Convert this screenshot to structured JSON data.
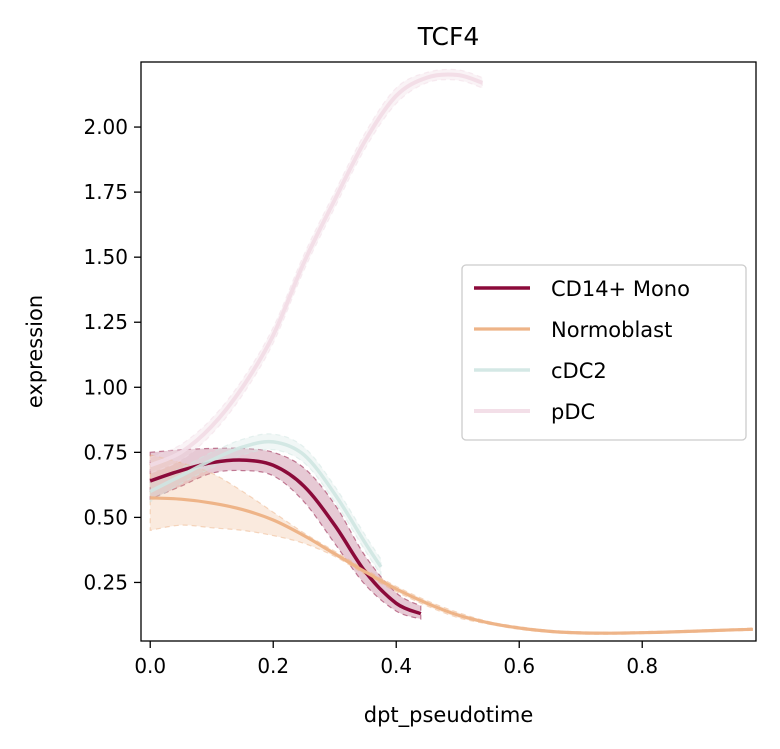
{
  "chart_data": {
    "type": "line",
    "title": "TCF4",
    "xlabel": "dpt_pseudotime",
    "ylabel": "expression",
    "xlim": [
      -0.015,
      0.985
    ],
    "ylim": [
      0.025,
      2.25
    ],
    "xticks": [
      0.0,
      0.2,
      0.4,
      0.6,
      0.8
    ],
    "xtick_labels": [
      "0.0",
      "0.2",
      "0.4",
      "0.6",
      "0.8"
    ],
    "yticks": [
      0.25,
      0.5,
      0.75,
      1.0,
      1.25,
      1.5,
      1.75,
      2.0
    ],
    "ytick_labels": [
      "0.25",
      "0.50",
      "0.75",
      "1.00",
      "1.25",
      "1.50",
      "1.75",
      "2.00"
    ],
    "grid": false,
    "legend_position": "center-right",
    "series": [
      {
        "name": "CD14+ Mono",
        "color": "#8b0a3a",
        "line_width": 3.5,
        "opacity": 1.0,
        "x": [
          0.0,
          0.05,
          0.1,
          0.15,
          0.2,
          0.25,
          0.3,
          0.35,
          0.4,
          0.44
        ],
        "y": [
          0.64,
          0.68,
          0.71,
          0.72,
          0.7,
          0.62,
          0.47,
          0.29,
          0.17,
          0.13
        ],
        "band_upper": [
          0.75,
          0.76,
          0.765,
          0.765,
          0.75,
          0.69,
          0.55,
          0.35,
          0.21,
          0.16
        ],
        "band_lower": [
          0.57,
          0.62,
          0.67,
          0.68,
          0.66,
          0.56,
          0.4,
          0.24,
          0.14,
          0.11
        ],
        "band_opacity": 0.22
      },
      {
        "name": "Normoblast",
        "color": "#eeb488",
        "line_width": 3.2,
        "opacity": 1.0,
        "x": [
          0.0,
          0.05,
          0.1,
          0.15,
          0.2,
          0.25,
          0.3,
          0.35,
          0.4,
          0.45,
          0.5,
          0.55,
          0.6,
          0.65,
          0.7,
          0.75,
          0.8,
          0.85,
          0.9,
          0.95,
          0.98
        ],
        "y": [
          0.575,
          0.57,
          0.555,
          0.53,
          0.49,
          0.43,
          0.36,
          0.29,
          0.225,
          0.17,
          0.125,
          0.095,
          0.075,
          0.062,
          0.056,
          0.055,
          0.057,
          0.06,
          0.064,
          0.068,
          0.07
        ],
        "band_upper": [
          0.74,
          0.71,
          0.67,
          0.6,
          0.52,
          0.44,
          0.37,
          0.3,
          0.235,
          0.18,
          0.135,
          0.1,
          0.08,
          0.066,
          0.06,
          0.059,
          0.061,
          0.064,
          0.068,
          0.072,
          0.075
        ],
        "band_lower": [
          0.45,
          0.47,
          0.46,
          0.45,
          0.43,
          0.4,
          0.35,
          0.28,
          0.215,
          0.16,
          0.115,
          0.09,
          0.07,
          0.058,
          0.052,
          0.051,
          0.053,
          0.056,
          0.06,
          0.064,
          0.066
        ],
        "band_opacity": 0.28
      },
      {
        "name": "cDC2",
        "color": "#cfe6e2",
        "line_width": 3.5,
        "opacity": 0.9,
        "x": [
          0.0,
          0.05,
          0.1,
          0.15,
          0.2,
          0.25,
          0.3,
          0.35,
          0.375
        ],
        "y": [
          0.6,
          0.66,
          0.72,
          0.77,
          0.79,
          0.74,
          0.59,
          0.4,
          0.31
        ],
        "band_upper": [
          0.64,
          0.69,
          0.75,
          0.8,
          0.82,
          0.77,
          0.62,
          0.43,
          0.34
        ],
        "band_lower": [
          0.56,
          0.63,
          0.69,
          0.74,
          0.76,
          0.71,
          0.56,
          0.37,
          0.28
        ],
        "band_opacity": 0.3
      },
      {
        "name": "pDC",
        "color": "#f2dce6",
        "line_width": 4.0,
        "opacity": 0.9,
        "x": [
          0.0,
          0.05,
          0.1,
          0.15,
          0.2,
          0.25,
          0.3,
          0.35,
          0.4,
          0.45,
          0.5,
          0.54
        ],
        "y": [
          0.7,
          0.75,
          0.85,
          1.0,
          1.2,
          1.48,
          1.72,
          1.95,
          2.12,
          2.19,
          2.2,
          2.17
        ],
        "band_upper": [
          0.73,
          0.78,
          0.88,
          1.03,
          1.23,
          1.51,
          1.75,
          1.98,
          2.15,
          2.21,
          2.22,
          2.19
        ],
        "band_lower": [
          0.67,
          0.72,
          0.82,
          0.97,
          1.17,
          1.45,
          1.69,
          1.92,
          2.09,
          2.17,
          2.18,
          2.15
        ],
        "band_opacity": 0.35
      }
    ]
  }
}
